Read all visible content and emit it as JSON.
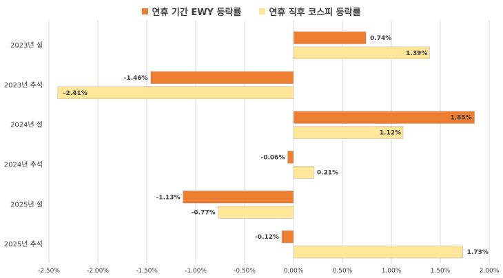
{
  "chart_data": {
    "type": "bar",
    "orientation": "horizontal",
    "title": "",
    "xlabel": "",
    "ylabel": "",
    "categories": [
      "2023년 설",
      "2023년 추석",
      "2024년 설",
      "2024년 추석",
      "2025년 설",
      "2025년 추석"
    ],
    "series": [
      {
        "name": "연휴 기간 EWY 등락률",
        "color": "#ED7D31",
        "values": [
          0.74,
          -1.46,
          1.85,
          -0.06,
          -1.13,
          -0.12
        ],
        "labels": [
          "0.74%",
          "-1.46%",
          "1.85%",
          "-0.06%",
          "-1.13%",
          "-0.12%"
        ]
      },
      {
        "name": "연휴 직후 코스피 등락률",
        "color": "#FFE699",
        "values": [
          1.39,
          -2.41,
          1.12,
          0.21,
          -0.77,
          1.73
        ],
        "labels": [
          "1.39%",
          "-2.41%",
          "1.12%",
          "0.21%",
          "-0.77%",
          "1.73%"
        ]
      }
    ],
    "xlim": [
      -2.5,
      2.0
    ],
    "xticks": [
      -2.5,
      -2.0,
      -1.5,
      -1.0,
      -0.5,
      0.0,
      0.5,
      1.0,
      1.5,
      2.0
    ],
    "xtick_labels": [
      "-2.50%",
      "-2.00%",
      "-1.50%",
      "-1.00%",
      "-0.50%",
      "0.00%",
      "0.50%",
      "1.00%",
      "1.50%",
      "2.00%"
    ],
    "grid": "vertical",
    "legend_position": "top-center"
  }
}
